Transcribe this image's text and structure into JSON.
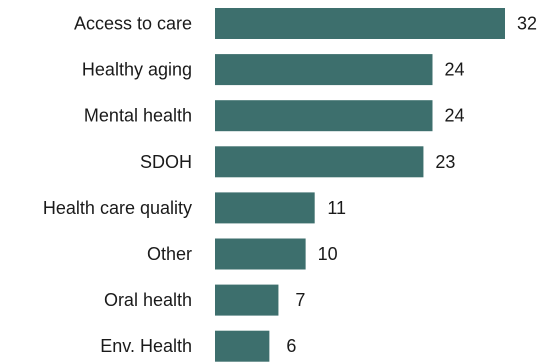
{
  "chart_data": {
    "type": "bar",
    "orientation": "horizontal",
    "categories": [
      "Access to care",
      "Healthy aging",
      "Mental health",
      "SDOH",
      "Health care quality",
      "Other",
      "Oral health",
      "Env. Health"
    ],
    "values": [
      32,
      24,
      24,
      23,
      11,
      10,
      7,
      6
    ],
    "data_labels": [
      "32",
      "24",
      "24",
      "23",
      "11",
      "10",
      "7",
      "6"
    ],
    "title": "",
    "xlabel": "",
    "ylabel": "",
    "xlim": [
      0,
      32
    ],
    "grid": false,
    "bar_color": "#3d6f6d"
  }
}
